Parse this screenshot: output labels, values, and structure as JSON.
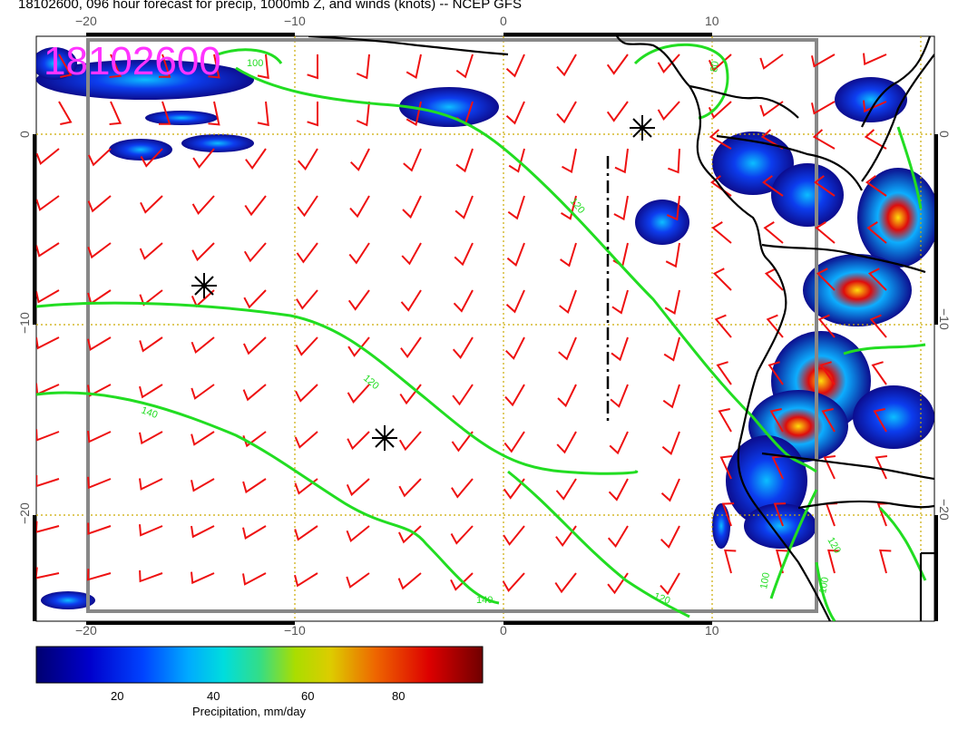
{
  "title": "18102600, 096 hour forecast for precip, 1000mb Z, and winds (knots) -- NCEP GFS",
  "stamp": "18102600",
  "colors": {
    "contour": "#22dd22",
    "wind": "#ee1111",
    "grid": "#ccaa00",
    "coast": "#000000",
    "frame": "#888888",
    "stamp": "#ff33ff"
  },
  "lon_ticks": [
    "−20",
    "−10",
    "0",
    "10"
  ],
  "lat_ticks": [
    "0",
    "−10",
    "−20"
  ],
  "contour_labels": [
    "100",
    "120",
    "120",
    "140",
    "140",
    "120",
    "80",
    "120",
    "100",
    "100"
  ],
  "colorbar": {
    "ticks": [
      "20",
      "40",
      "60",
      "80"
    ],
    "label": "Precipitation, mm/day",
    "stops": [
      "#000070",
      "#0000cc",
      "#0044ff",
      "#00aaff",
      "#00dddd",
      "#33dd88",
      "#aadd00",
      "#ddcc00",
      "#ee6600",
      "#dd0000",
      "#700000"
    ]
  },
  "markers": [
    "high-pressure-center-1",
    "high-pressure-center-2",
    "high-pressure-center-3"
  ]
}
